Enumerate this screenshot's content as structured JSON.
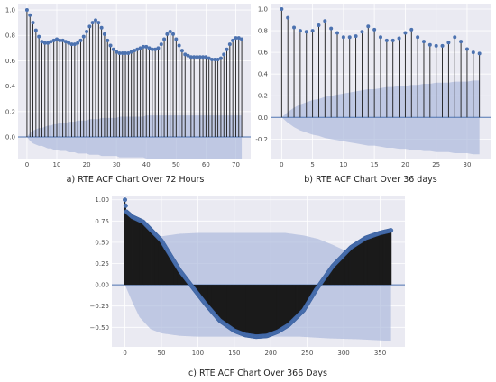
{
  "colors": {
    "plot_bg": "#eaeaf2",
    "grid": "#ffffff",
    "marker": "#4c72b0",
    "stem": "#1a1a1a",
    "band": "#a8b5da",
    "zero_line": "#4c72b0"
  },
  "chart_data": [
    {
      "type": "stem",
      "caption": "a) RTE ACF Chart Over 72 Hours",
      "xlim": [
        -3,
        75
      ],
      "ylim": [
        -0.17,
        1.05
      ],
      "xticks": [
        0,
        10,
        20,
        30,
        40,
        50,
        60,
        70
      ],
      "yticks": [
        0.0,
        0.2,
        0.4,
        0.6,
        0.8,
        1.0
      ],
      "ytick_labels": [
        "0.0",
        "0.2",
        "0.4",
        "0.6",
        "0.8",
        "1.0"
      ],
      "lags": [
        0,
        1,
        2,
        3,
        4,
        5,
        6,
        7,
        8,
        9,
        10,
        11,
        12,
        13,
        14,
        15,
        16,
        17,
        18,
        19,
        20,
        21,
        22,
        23,
        24,
        25,
        26,
        27,
        28,
        29,
        30,
        31,
        32,
        33,
        34,
        35,
        36,
        37,
        38,
        39,
        40,
        41,
        42,
        43,
        44,
        45,
        46,
        47,
        48,
        49,
        50,
        51,
        52,
        53,
        54,
        55,
        56,
        57,
        58,
        59,
        60,
        61,
        62,
        63,
        64,
        65,
        66,
        67,
        68,
        69,
        70,
        71,
        72
      ],
      "values": [
        1.0,
        0.96,
        0.9,
        0.84,
        0.79,
        0.75,
        0.74,
        0.74,
        0.75,
        0.76,
        0.77,
        0.76,
        0.76,
        0.75,
        0.74,
        0.73,
        0.73,
        0.74,
        0.76,
        0.79,
        0.83,
        0.87,
        0.9,
        0.92,
        0.9,
        0.86,
        0.81,
        0.76,
        0.72,
        0.69,
        0.67,
        0.66,
        0.66,
        0.66,
        0.66,
        0.67,
        0.68,
        0.69,
        0.7,
        0.71,
        0.71,
        0.7,
        0.69,
        0.69,
        0.7,
        0.73,
        0.77,
        0.81,
        0.83,
        0.81,
        0.77,
        0.72,
        0.68,
        0.65,
        0.64,
        0.63,
        0.63,
        0.63,
        0.63,
        0.63,
        0.63,
        0.62,
        0.61,
        0.61,
        0.61,
        0.62,
        0.65,
        0.69,
        0.73,
        0.76,
        0.78,
        0.78,
        0.77
      ],
      "confint_lower": [
        0,
        -0.03,
        -0.05,
        -0.06,
        -0.07,
        -0.07,
        -0.08,
        -0.09,
        -0.09,
        -0.1,
        -0.1,
        -0.11,
        -0.11,
        -0.11,
        -0.12,
        -0.12,
        -0.12,
        -0.13,
        -0.13,
        -0.13,
        -0.13,
        -0.14,
        -0.14,
        -0.14,
        -0.14,
        -0.15,
        -0.15,
        -0.15,
        -0.15,
        -0.15,
        -0.15,
        -0.16,
        -0.16,
        -0.16,
        -0.16,
        -0.16,
        -0.16,
        -0.16,
        -0.16,
        -0.16,
        -0.17,
        -0.17,
        -0.17,
        -0.17,
        -0.17,
        -0.17,
        -0.17,
        -0.17,
        -0.17,
        -0.17,
        -0.17,
        -0.17,
        -0.17,
        -0.17,
        -0.17,
        -0.17,
        -0.17,
        -0.17,
        -0.17,
        -0.17,
        -0.17,
        -0.17,
        -0.17,
        -0.17,
        -0.17,
        -0.17,
        -0.17,
        -0.17,
        -0.17,
        -0.17,
        -0.17,
        -0.17,
        -0.17
      ],
      "confint_upper": [
        0,
        0.03,
        0.05,
        0.06,
        0.07,
        0.07,
        0.08,
        0.09,
        0.09,
        0.1,
        0.1,
        0.11,
        0.11,
        0.11,
        0.12,
        0.12,
        0.12,
        0.13,
        0.13,
        0.13,
        0.13,
        0.14,
        0.14,
        0.14,
        0.14,
        0.15,
        0.15,
        0.15,
        0.15,
        0.15,
        0.15,
        0.16,
        0.16,
        0.16,
        0.16,
        0.16,
        0.16,
        0.16,
        0.16,
        0.16,
        0.17,
        0.17,
        0.17,
        0.17,
        0.17,
        0.17,
        0.17,
        0.17,
        0.17,
        0.17,
        0.17,
        0.17,
        0.17,
        0.17,
        0.17,
        0.17,
        0.17,
        0.17,
        0.17,
        0.17,
        0.17,
        0.17,
        0.17,
        0.17,
        0.17,
        0.17,
        0.17,
        0.17,
        0.17,
        0.17,
        0.17,
        0.17,
        0.17
      ],
      "grid": true
    },
    {
      "type": "stem",
      "caption": "b) RTE ACF Chart Over 36 days",
      "xlim": [
        -1.8,
        33.8
      ],
      "ylim": [
        -0.38,
        1.05
      ],
      "xticks": [
        0,
        5,
        10,
        15,
        20,
        25,
        30
      ],
      "yticks": [
        -0.2,
        0.0,
        0.2,
        0.4,
        0.6,
        0.8,
        1.0
      ],
      "ytick_labels": [
        "-0.2",
        "0.0",
        "0.2",
        "0.4",
        "0.6",
        "0.8",
        "1.0"
      ],
      "lags": [
        0,
        1,
        2,
        3,
        4,
        5,
        6,
        7,
        8,
        9,
        10,
        11,
        12,
        13,
        14,
        15,
        16,
        17,
        18,
        19,
        20,
        21,
        22,
        23,
        24,
        25,
        26,
        27,
        28,
        29,
        30,
        31,
        32
      ],
      "values": [
        1.0,
        0.92,
        0.83,
        0.8,
        0.79,
        0.8,
        0.85,
        0.89,
        0.82,
        0.78,
        0.74,
        0.74,
        0.75,
        0.79,
        0.84,
        0.81,
        0.74,
        0.71,
        0.71,
        0.73,
        0.78,
        0.81,
        0.74,
        0.7,
        0.67,
        0.66,
        0.66,
        0.69,
        0.74,
        0.7,
        0.63,
        0.6,
        0.59
      ],
      "confint_lower": [
        0,
        -0.05,
        -0.09,
        -0.12,
        -0.14,
        -0.16,
        -0.17,
        -0.19,
        -0.2,
        -0.21,
        -0.22,
        -0.23,
        -0.24,
        -0.25,
        -0.26,
        -0.26,
        -0.27,
        -0.28,
        -0.28,
        -0.29,
        -0.29,
        -0.3,
        -0.3,
        -0.31,
        -0.31,
        -0.32,
        -0.32,
        -0.32,
        -0.33,
        -0.33,
        -0.33,
        -0.34,
        -0.34
      ],
      "confint_upper": [
        0,
        0.05,
        0.09,
        0.12,
        0.14,
        0.16,
        0.17,
        0.19,
        0.2,
        0.21,
        0.22,
        0.23,
        0.24,
        0.25,
        0.26,
        0.26,
        0.27,
        0.28,
        0.28,
        0.29,
        0.29,
        0.3,
        0.3,
        0.31,
        0.31,
        0.32,
        0.32,
        0.32,
        0.33,
        0.33,
        0.33,
        0.34,
        0.34
      ],
      "grid": true
    },
    {
      "type": "stem",
      "caption": "c) RTE ACF Chart Over 366 Days",
      "xlim": [
        -18,
        384
      ],
      "ylim": [
        -0.73,
        1.05
      ],
      "xticks": [
        0,
        50,
        100,
        150,
        200,
        250,
        300,
        350
      ],
      "yticks": [
        -0.5,
        -0.25,
        0.0,
        0.25,
        0.5,
        0.75,
        1.0
      ],
      "ytick_labels": [
        "−0.50",
        "−0.25",
        "0.00",
        "0.25",
        "0.50",
        "0.75",
        "1.00"
      ],
      "lag_count": 366,
      "curve_points": [
        [
          0,
          1.0
        ],
        [
          2,
          0.86
        ],
        [
          10,
          0.8
        ],
        [
          25,
          0.74
        ],
        [
          50,
          0.52
        ],
        [
          75,
          0.17
        ],
        [
          92,
          -0.02
        ],
        [
          110,
          -0.22
        ],
        [
          130,
          -0.42
        ],
        [
          150,
          -0.54
        ],
        [
          165,
          -0.59
        ],
        [
          180,
          -0.61
        ],
        [
          195,
          -0.6
        ],
        [
          210,
          -0.55
        ],
        [
          225,
          -0.47
        ],
        [
          245,
          -0.3
        ],
        [
          262,
          -0.06
        ],
        [
          285,
          0.22
        ],
        [
          310,
          0.44
        ],
        [
          330,
          0.55
        ],
        [
          350,
          0.61
        ],
        [
          365,
          0.64
        ]
      ],
      "band_points": [
        [
          0,
          0
        ],
        [
          5,
          0.1
        ],
        [
          10,
          0.2
        ],
        [
          20,
          0.38
        ],
        [
          35,
          0.52
        ],
        [
          50,
          0.57
        ],
        [
          75,
          0.6
        ],
        [
          100,
          0.61
        ],
        [
          150,
          0.61
        ],
        [
          200,
          0.61
        ],
        [
          220,
          0.61
        ],
        [
          245,
          0.58
        ],
        [
          265,
          0.54
        ],
        [
          285,
          0.47
        ],
        [
          305,
          0.39
        ],
        [
          320,
          0.34
        ],
        [
          345,
          0.3
        ],
        [
          365,
          0.28
        ]
      ],
      "band_lower_points": [
        [
          0,
          0
        ],
        [
          5,
          -0.1
        ],
        [
          10,
          -0.2
        ],
        [
          20,
          -0.38
        ],
        [
          35,
          -0.52
        ],
        [
          50,
          -0.57
        ],
        [
          75,
          -0.6
        ],
        [
          100,
          -0.61
        ],
        [
          150,
          -0.61
        ],
        [
          200,
          -0.61
        ],
        [
          240,
          -0.61
        ],
        [
          280,
          -0.63
        ],
        [
          320,
          -0.64
        ],
        [
          365,
          -0.66
        ]
      ],
      "grid": true
    }
  ]
}
